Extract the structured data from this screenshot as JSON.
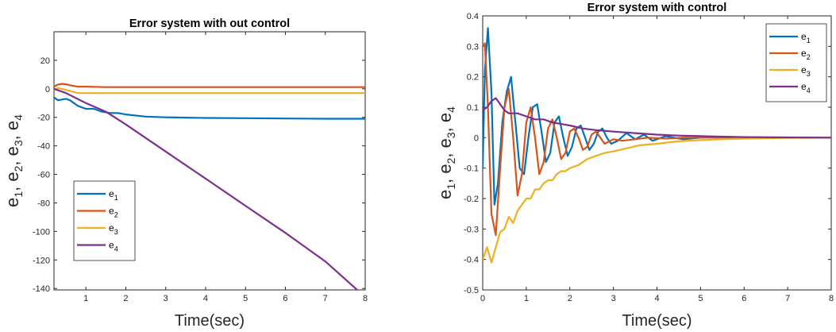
{
  "chart_data": [
    {
      "type": "line",
      "title": "Error system with out control",
      "xlabel": "Time(sec)",
      "ylabel": [
        "e",
        "1",
        ", e",
        "2",
        ", e",
        "3",
        ", e",
        "4"
      ],
      "xlim": [
        0.2,
        8.0
      ],
      "ylim": [
        -141,
        40
      ],
      "xticks": [
        1,
        2,
        3,
        4,
        5,
        6,
        7,
        8
      ],
      "yticks": [
        20,
        0,
        -20,
        -40,
        -60,
        -80,
        -100,
        -120,
        -140
      ],
      "legend_position": "lower-left",
      "series": [
        {
          "name": "e1",
          "color": "#0072BD",
          "x": [
            0.2,
            0.3,
            0.4,
            0.5,
            0.6,
            0.7,
            0.8,
            0.9,
            1.0,
            1.2,
            1.4,
            1.6,
            1.8,
            2.0,
            2.5,
            3.0,
            3.5,
            4.0,
            5.0,
            6.0,
            7.0,
            8.0
          ],
          "y": [
            -6,
            -8,
            -7.5,
            -7,
            -8,
            -10,
            -12,
            -13,
            -14,
            -14,
            -16,
            -17,
            -17,
            -18,
            -19.5,
            -20,
            -20.2,
            -20.4,
            -20.6,
            -20.8,
            -21,
            -21
          ]
        },
        {
          "name": "e2",
          "color": "#D95319",
          "x": [
            0.2,
            0.3,
            0.4,
            0.5,
            0.6,
            0.8,
            1.0,
            1.5,
            2.0,
            3.0,
            4.0,
            5.0,
            6.0,
            7.0,
            8.0
          ],
          "y": [
            1.5,
            3,
            3.5,
            3.2,
            2.5,
            1.5,
            1.5,
            1.2,
            1.2,
            1.2,
            1.2,
            1.2,
            1.2,
            1.2,
            1.2
          ]
        },
        {
          "name": "e3",
          "color": "#EDB120",
          "x": [
            0.2,
            0.3,
            0.4,
            0.6,
            0.8,
            1.0,
            1.5,
            2.0,
            3.0,
            4.0,
            5.0,
            6.0,
            7.0,
            8.0
          ],
          "y": [
            -1,
            0.5,
            0,
            -1.5,
            -3,
            -3,
            -3,
            -3,
            -3,
            -3,
            -3,
            -3,
            -3,
            -3
          ]
        },
        {
          "name": "e4",
          "color": "#7E2F8E",
          "x": [
            0.2,
            0.5,
            1.0,
            1.5,
            2.0,
            3.0,
            4.0,
            5.0,
            6.0,
            7.0,
            7.8
          ],
          "y": [
            0,
            -3,
            -10,
            -16,
            -25,
            -44,
            -63,
            -82,
            -101,
            -121,
            -141
          ]
        }
      ]
    },
    {
      "type": "line",
      "title": "Error system with control",
      "xlabel": "Time(sec)",
      "ylabel": [
        "e",
        "1",
        ", e",
        "2",
        ", e",
        "3",
        ", e",
        "4"
      ],
      "xlim": [
        0,
        8
      ],
      "ylim": [
        -0.5,
        0.4
      ],
      "xticks": [
        0,
        1,
        2,
        3,
        4,
        5,
        6,
        7,
        8
      ],
      "yticks": [
        0.4,
        0.3,
        0.2,
        0.1,
        0,
        -0.1,
        -0.2,
        -0.3,
        -0.4,
        -0.5
      ],
      "legend_position": "top-right",
      "series": [
        {
          "name": "e1",
          "color": "#0072BD",
          "x": [
            0,
            0.05,
            0.12,
            0.2,
            0.27,
            0.35,
            0.45,
            0.55,
            0.65,
            0.75,
            0.85,
            0.95,
            1.05,
            1.15,
            1.25,
            1.35,
            1.45,
            1.55,
            1.65,
            1.75,
            1.85,
            1.95,
            2.05,
            2.15,
            2.25,
            2.35,
            2.45,
            2.55,
            2.65,
            2.75,
            2.85,
            2.95,
            3.1,
            3.3,
            3.5,
            3.7,
            3.9,
            4.2,
            4.6,
            5,
            5.5,
            6,
            7,
            8
          ],
          "y": [
            -0.1,
            0.22,
            0.36,
            0.15,
            -0.22,
            -0.15,
            0.05,
            0.15,
            0.2,
            0.05,
            -0.1,
            -0.12,
            0.0,
            0.1,
            0.11,
            0.02,
            -0.08,
            -0.05,
            0.05,
            0.07,
            0.0,
            -0.06,
            -0.03,
            0.03,
            0.04,
            0.0,
            -0.04,
            -0.02,
            0.02,
            0.03,
            0.0,
            -0.02,
            -0.01,
            0.015,
            -0.005,
            0.01,
            -0.01,
            0.005,
            -0.005,
            0.0,
            0.003,
            0,
            0,
            0
          ]
        },
        {
          "name": "e2",
          "color": "#D95319",
          "x": [
            0,
            0.05,
            0.12,
            0.2,
            0.3,
            0.4,
            0.5,
            0.6,
            0.7,
            0.8,
            0.9,
            1.0,
            1.1,
            1.2,
            1.3,
            1.4,
            1.5,
            1.6,
            1.7,
            1.8,
            1.9,
            2.0,
            2.1,
            2.2,
            2.3,
            2.4,
            2.5,
            2.6,
            2.7,
            2.8,
            3.0,
            3.2,
            3.5,
            3.8,
            4.2,
            4.6,
            5,
            6,
            7,
            8
          ],
          "y": [
            0.3,
            0.31,
            0.1,
            -0.25,
            -0.32,
            -0.1,
            0.1,
            0.16,
            0.0,
            -0.19,
            -0.12,
            0.05,
            0.1,
            0.0,
            -0.12,
            -0.08,
            0.03,
            0.06,
            0.0,
            -0.07,
            -0.05,
            0.02,
            0.03,
            0.0,
            -0.04,
            -0.03,
            0.01,
            0.02,
            0.0,
            -0.02,
            -0.005,
            -0.01,
            -0.005,
            0.0,
            -0.003,
            0.0,
            0.0,
            0,
            0,
            0
          ]
        },
        {
          "name": "e3",
          "color": "#EDB120",
          "x": [
            0,
            0.1,
            0.2,
            0.3,
            0.4,
            0.5,
            0.6,
            0.7,
            0.8,
            0.9,
            1.0,
            1.1,
            1.2,
            1.3,
            1.4,
            1.5,
            1.6,
            1.7,
            1.8,
            1.9,
            2.0,
            2.2,
            2.4,
            2.6,
            2.8,
            3.0,
            3.3,
            3.6,
            4.0,
            4.5,
            5,
            5.5,
            6,
            7,
            8
          ],
          "y": [
            -0.4,
            -0.36,
            -0.41,
            -0.36,
            -0.31,
            -0.3,
            -0.26,
            -0.28,
            -0.24,
            -0.22,
            -0.2,
            -0.2,
            -0.17,
            -0.17,
            -0.15,
            -0.14,
            -0.14,
            -0.12,
            -0.11,
            -0.11,
            -0.1,
            -0.09,
            -0.07,
            -0.06,
            -0.05,
            -0.045,
            -0.035,
            -0.025,
            -0.02,
            -0.012,
            -0.008,
            -0.005,
            -0.003,
            -0.001,
            0
          ]
        },
        {
          "name": "e4",
          "color": "#7E2F8E",
          "x": [
            0,
            0.1,
            0.2,
            0.3,
            0.4,
            0.5,
            0.6,
            0.8,
            1.0,
            1.2,
            1.4,
            1.6,
            1.8,
            2.0,
            2.3,
            2.6,
            3.0,
            3.5,
            4.0,
            4.5,
            5,
            6,
            7,
            8
          ],
          "y": [
            0.09,
            0.1,
            0.12,
            0.13,
            0.11,
            0.09,
            0.08,
            0.08,
            0.07,
            0.06,
            0.06,
            0.05,
            0.045,
            0.04,
            0.03,
            0.025,
            0.02,
            0.015,
            0.01,
            0.007,
            0.005,
            0.002,
            0.001,
            0
          ]
        }
      ]
    }
  ],
  "legend_labels": [
    {
      "base": "e",
      "sub": "1"
    },
    {
      "base": "e",
      "sub": "2"
    },
    {
      "base": "e",
      "sub": "3"
    },
    {
      "base": "e",
      "sub": "4"
    }
  ]
}
